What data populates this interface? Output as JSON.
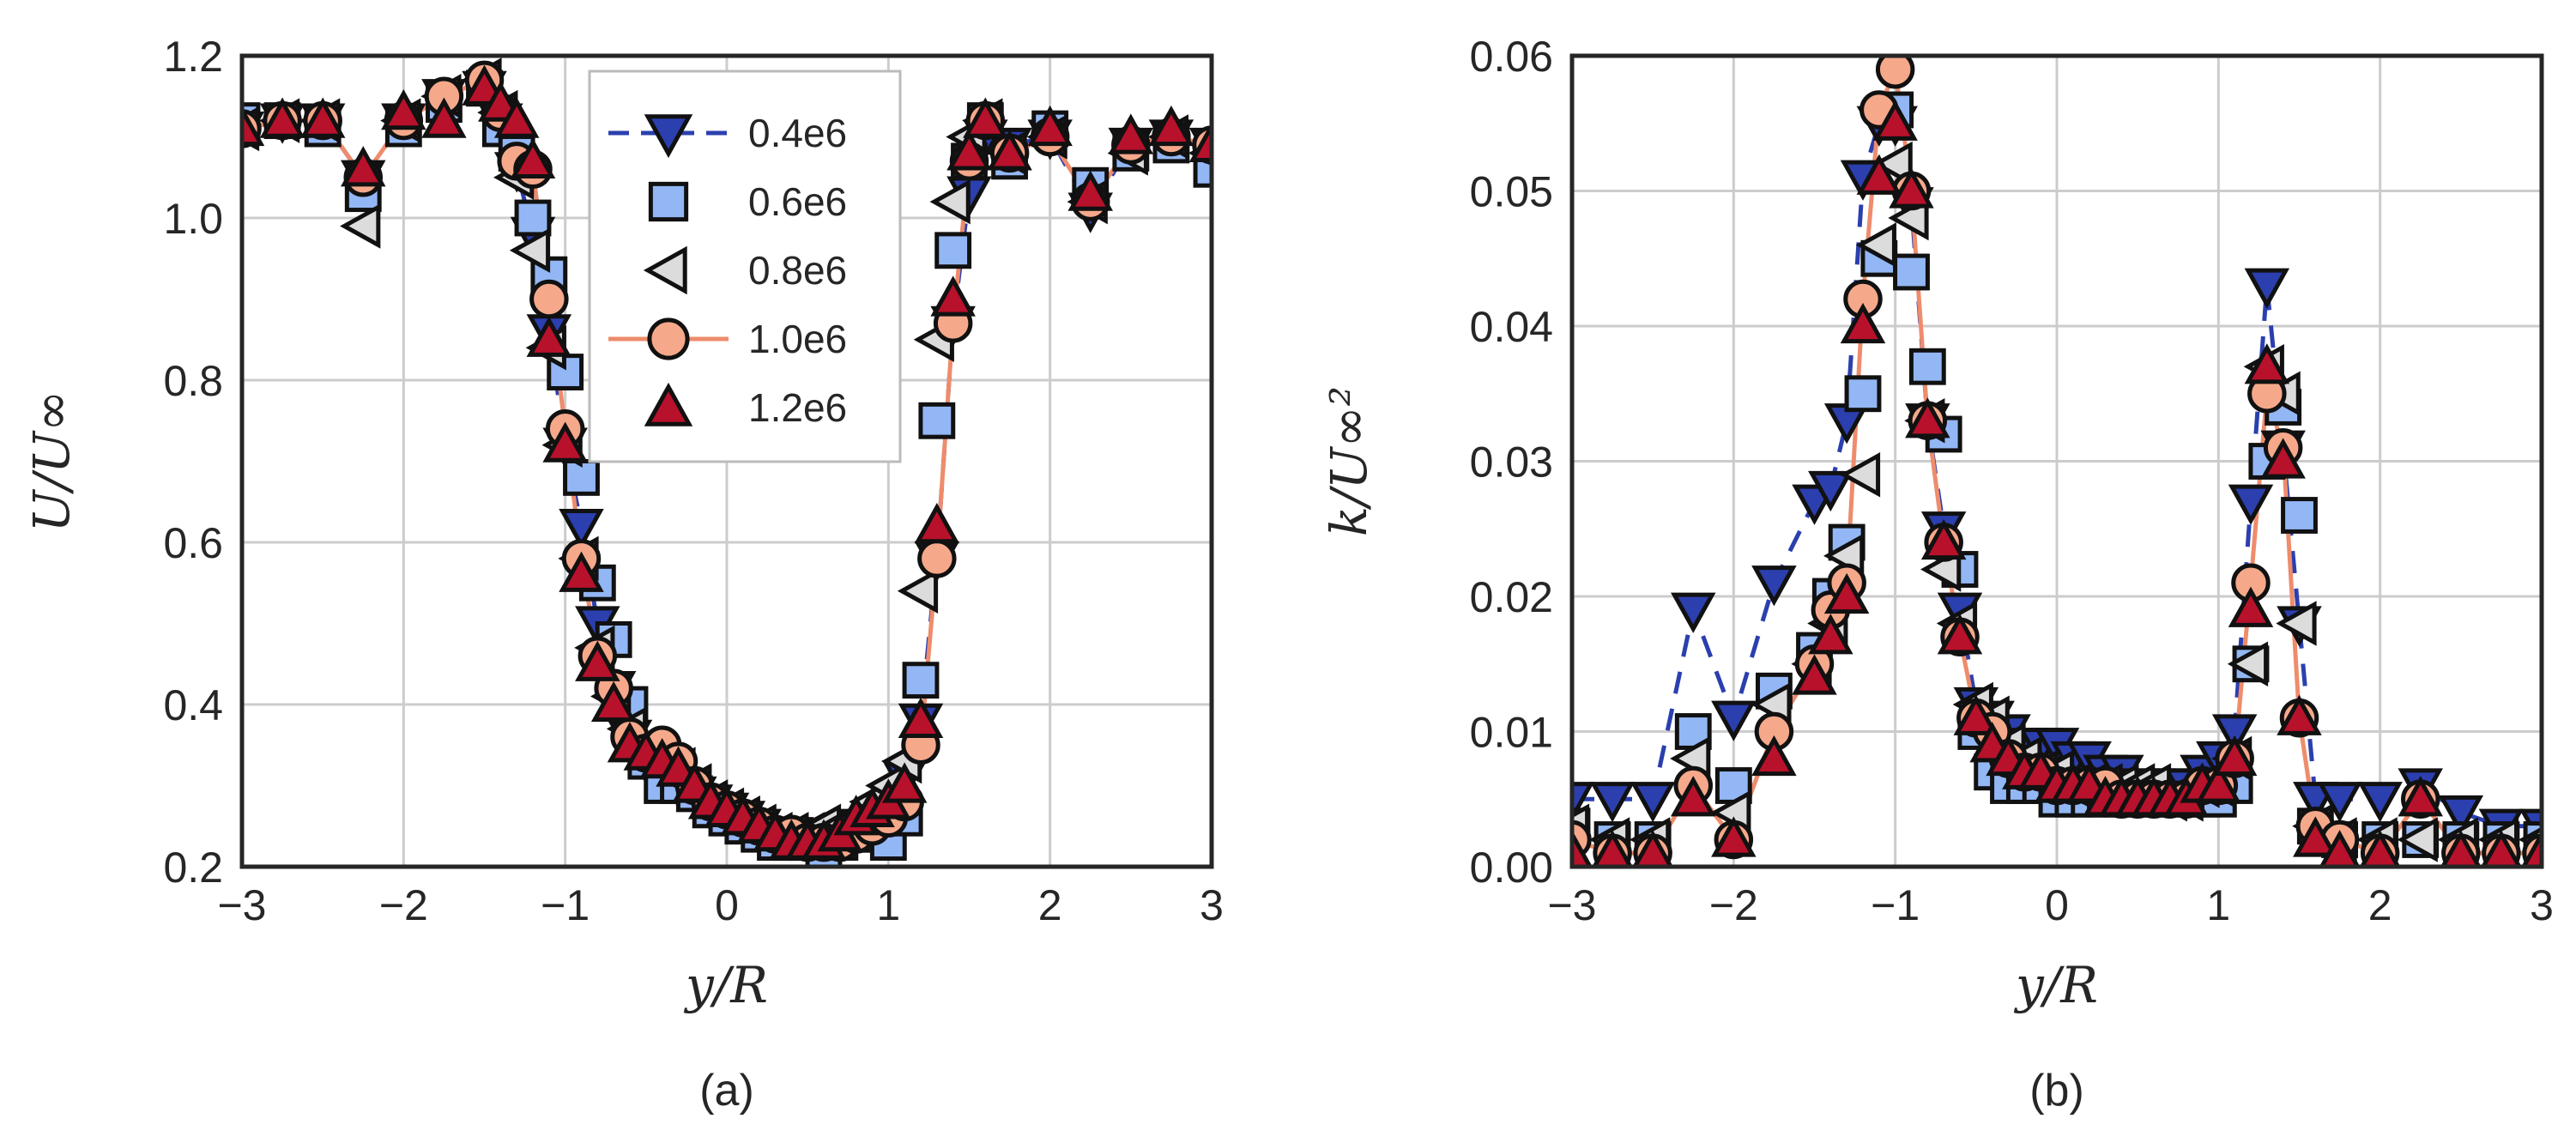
{
  "figure": {
    "legend_entries": [
      "0.4e6",
      "0.6e6",
      "0.8e6",
      "1.0e6",
      "1.2e6"
    ],
    "colors": {
      "s04": "#2b3fae",
      "s06": "#93b7f5",
      "s08": "#dcdcdc",
      "s10": "#f5a98a",
      "s12": "#b8112b",
      "line10": "#ee8c6c",
      "grid": "#cccccc",
      "frame": "#262626"
    }
  },
  "chart_data": [
    {
      "type": "line",
      "panel_label": "(a)",
      "xlabel": "y/R",
      "ylabel": "U/U∞",
      "xlim": [
        -3,
        3
      ],
      "ylim": [
        0.2,
        1.2
      ],
      "xticks": [
        "−3",
        "−2",
        "−1",
        "0",
        "1",
        "2",
        "3"
      ],
      "yticks": [
        "0.2",
        "0.4",
        "0.6",
        "0.8",
        "1.0",
        "1.2"
      ],
      "grid": true,
      "legend": "top-center",
      "x": [
        -3.0,
        -2.75,
        -2.5,
        -2.25,
        -2.0,
        -1.75,
        -1.5,
        -1.4,
        -1.3,
        -1.2,
        -1.1,
        -1.0,
        -0.9,
        -0.8,
        -0.7,
        -0.6,
        -0.5,
        -0.4,
        -0.3,
        -0.2,
        -0.1,
        0.0,
        0.1,
        0.2,
        0.3,
        0.4,
        0.5,
        0.6,
        0.7,
        0.8,
        0.9,
        1.0,
        1.1,
        1.2,
        1.3,
        1.4,
        1.5,
        1.6,
        1.75,
        2.0,
        2.25,
        2.5,
        2.75,
        3.0
      ],
      "series": [
        {
          "name": "0.4e6",
          "marker": "triangle-down",
          "line": "dashed",
          "values": [
            1.11,
            1.12,
            1.12,
            1.05,
            1.12,
            1.15,
            1.16,
            1.12,
            1.06,
            0.98,
            0.86,
            0.72,
            0.62,
            0.5,
            0.42,
            0.36,
            0.33,
            0.32,
            0.3,
            0.29,
            0.28,
            0.27,
            0.26,
            0.25,
            0.24,
            0.24,
            0.23,
            0.23,
            0.24,
            0.25,
            0.26,
            0.27,
            0.31,
            0.38,
            0.58,
            0.87,
            1.03,
            1.1,
            1.09,
            1.1,
            1.01,
            1.09,
            1.1,
            1.09
          ]
        },
        {
          "name": "0.6e6",
          "marker": "square",
          "line": "none",
          "values": [
            1.12,
            1.12,
            1.11,
            1.03,
            1.11,
            1.14,
            1.16,
            1.11,
            1.08,
            1.0,
            0.93,
            0.81,
            0.68,
            0.55,
            0.48,
            0.4,
            0.33,
            0.3,
            0.3,
            0.29,
            0.27,
            0.26,
            0.25,
            0.24,
            0.23,
            0.23,
            0.23,
            0.22,
            0.23,
            0.24,
            0.24,
            0.23,
            0.26,
            0.43,
            0.75,
            0.96,
            1.07,
            1.12,
            1.07,
            1.11,
            1.04,
            1.08,
            1.09,
            1.06
          ]
        },
        {
          "name": "0.8e6",
          "marker": "triangle-left",
          "line": "none",
          "values": [
            1.11,
            1.12,
            1.12,
            0.99,
            1.12,
            1.15,
            1.17,
            1.13,
            1.05,
            0.96,
            0.84,
            0.72,
            0.58,
            0.47,
            0.41,
            0.37,
            0.34,
            0.33,
            0.32,
            0.3,
            0.28,
            0.27,
            0.26,
            0.25,
            0.24,
            0.24,
            0.24,
            0.25,
            0.25,
            0.26,
            0.28,
            0.3,
            0.33,
            0.54,
            0.85,
            1.02,
            1.1,
            1.12,
            1.08,
            1.1,
            1.02,
            1.08,
            1.1,
            1.08
          ]
        },
        {
          "name": "1.0e6",
          "marker": "circle",
          "line": "solid",
          "values": [
            1.11,
            1.12,
            1.12,
            1.05,
            1.12,
            1.15,
            1.17,
            1.13,
            1.07,
            1.06,
            0.9,
            0.74,
            0.58,
            0.46,
            0.42,
            0.36,
            0.34,
            0.35,
            0.33,
            0.3,
            0.28,
            0.27,
            0.26,
            0.25,
            0.24,
            0.24,
            0.23,
            0.23,
            0.23,
            0.24,
            0.25,
            0.26,
            0.28,
            0.35,
            0.58,
            0.87,
            1.07,
            1.12,
            1.08,
            1.1,
            1.02,
            1.09,
            1.1,
            1.09
          ]
        },
        {
          "name": "1.2e6",
          "marker": "triangle-up",
          "line": "none",
          "values": [
            1.11,
            1.12,
            1.12,
            1.06,
            1.13,
            1.12,
            1.16,
            1.14,
            1.12,
            1.07,
            0.85,
            0.72,
            0.56,
            0.45,
            0.4,
            0.35,
            0.34,
            0.33,
            0.32,
            0.3,
            0.28,
            0.27,
            0.26,
            0.25,
            0.24,
            0.23,
            0.23,
            0.23,
            0.24,
            0.26,
            0.27,
            0.28,
            0.3,
            0.38,
            0.62,
            0.9,
            1.08,
            1.12,
            1.08,
            1.11,
            1.03,
            1.1,
            1.11,
            1.09
          ]
        }
      ]
    },
    {
      "type": "line",
      "panel_label": "(b)",
      "xlabel": "y/R",
      "ylabel": "k/U∞²",
      "xlim": [
        -3,
        3
      ],
      "ylim": [
        0.0,
        0.06
      ],
      "xticks": [
        "−3",
        "−2",
        "−1",
        "0",
        "1",
        "2",
        "3"
      ],
      "yticks": [
        "0.00",
        "0.01",
        "0.02",
        "0.03",
        "0.04",
        "0.05",
        "0.06"
      ],
      "grid": true,
      "legend": "none",
      "x": [
        -3.0,
        -2.75,
        -2.5,
        -2.25,
        -2.0,
        -1.75,
        -1.5,
        -1.4,
        -1.3,
        -1.2,
        -1.1,
        -1.0,
        -0.9,
        -0.8,
        -0.7,
        -0.6,
        -0.5,
        -0.4,
        -0.3,
        -0.2,
        -0.1,
        0.0,
        0.1,
        0.2,
        0.3,
        0.4,
        0.5,
        0.6,
        0.7,
        0.8,
        0.9,
        1.0,
        1.1,
        1.2,
        1.3,
        1.4,
        1.5,
        1.6,
        1.75,
        2.0,
        2.25,
        2.5,
        2.75,
        3.0
      ],
      "series": [
        {
          "name": "0.4e6",
          "marker": "triangle-down",
          "line": "dashed",
          "values": [
            0.005,
            0.005,
            0.005,
            0.019,
            0.011,
            0.021,
            0.027,
            0.028,
            0.033,
            0.051,
            0.055,
            0.055,
            0.049,
            0.033,
            0.025,
            0.019,
            0.012,
            0.011,
            0.01,
            0.009,
            0.009,
            0.009,
            0.008,
            0.008,
            0.007,
            0.007,
            0.006,
            0.006,
            0.006,
            0.006,
            0.007,
            0.008,
            0.01,
            0.027,
            0.043,
            0.031,
            0.018,
            0.005,
            0.005,
            0.005,
            0.006,
            0.004,
            0.003,
            0.003
          ]
        },
        {
          "name": "0.6e6",
          "marker": "square",
          "line": "none",
          "values": [
            0.003,
            0.002,
            0.002,
            0.01,
            0.006,
            0.013,
            0.016,
            0.02,
            0.024,
            0.035,
            0.045,
            0.056,
            0.044,
            0.037,
            0.032,
            0.022,
            0.01,
            0.007,
            0.006,
            0.006,
            0.006,
            0.005,
            0.005,
            0.005,
            0.005,
            0.005,
            0.005,
            0.005,
            0.005,
            0.005,
            0.005,
            0.005,
            0.006,
            0.015,
            0.03,
            0.034,
            0.026,
            0.003,
            0.002,
            0.002,
            0.002,
            0.002,
            0.002,
            0.002
          ]
        },
        {
          "name": "0.8e6",
          "marker": "triangle-left",
          "line": "none",
          "values": [
            0.003,
            0.002,
            0.002,
            0.008,
            0.004,
            0.012,
            0.015,
            0.018,
            0.023,
            0.029,
            0.046,
            0.052,
            0.048,
            0.033,
            0.022,
            0.018,
            0.012,
            0.011,
            0.009,
            0.008,
            0.007,
            0.007,
            0.006,
            0.006,
            0.006,
            0.006,
            0.006,
            0.006,
            0.005,
            0.005,
            0.006,
            0.006,
            0.008,
            0.015,
            0.037,
            0.035,
            0.018,
            0.003,
            0.002,
            0.002,
            0.002,
            0.002,
            0.002,
            0.002
          ]
        },
        {
          "name": "1.0e6",
          "marker": "circle",
          "line": "solid",
          "values": [
            0.002,
            0.001,
            0.001,
            0.006,
            0.002,
            0.01,
            0.015,
            0.019,
            0.021,
            0.042,
            0.056,
            0.059,
            0.05,
            0.033,
            0.024,
            0.017,
            0.011,
            0.01,
            0.008,
            0.007,
            0.007,
            0.006,
            0.006,
            0.006,
            0.006,
            0.005,
            0.005,
            0.005,
            0.005,
            0.005,
            0.006,
            0.006,
            0.008,
            0.021,
            0.035,
            0.031,
            0.011,
            0.003,
            0.002,
            0.001,
            0.005,
            0.001,
            0.001,
            0.001
          ]
        },
        {
          "name": "1.2e6",
          "marker": "triangle-up",
          "line": "none",
          "values": [
            0.001,
            0.001,
            0.001,
            0.005,
            0.002,
            0.008,
            0.014,
            0.017,
            0.02,
            0.04,
            0.051,
            0.055,
            0.05,
            0.033,
            0.024,
            0.017,
            0.011,
            0.009,
            0.008,
            0.007,
            0.007,
            0.006,
            0.006,
            0.006,
            0.005,
            0.005,
            0.005,
            0.005,
            0.005,
            0.005,
            0.006,
            0.006,
            0.008,
            0.019,
            0.037,
            0.03,
            0.011,
            0.002,
            0.001,
            0.001,
            0.005,
            0.001,
            0.001,
            0.001
          ]
        }
      ]
    }
  ]
}
